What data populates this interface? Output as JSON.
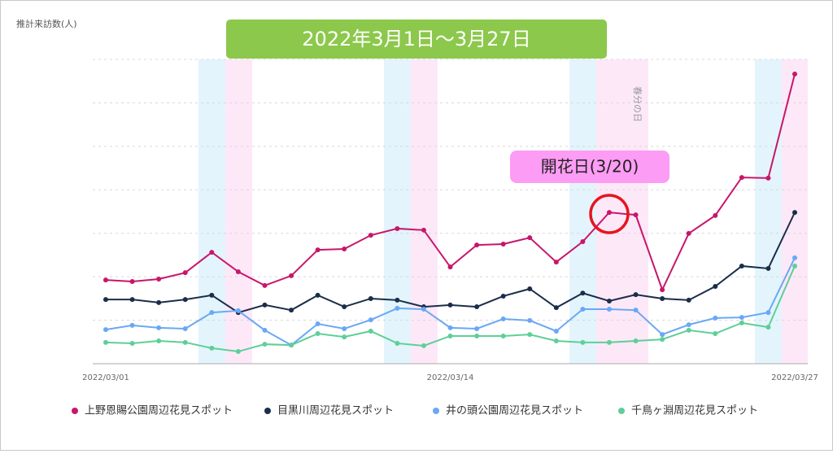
{
  "chart_data": {
    "type": "line",
    "title": "2022年3月1日～3月27日",
    "y_label": "推計来訪数(人)",
    "annotations": [
      "開花日(3/20)",
      "春分の日"
    ],
    "categories": [
      "2022/03/01",
      null,
      null,
      null,
      null,
      null,
      null,
      null,
      null,
      null,
      null,
      null,
      null,
      "2022/03/14",
      null,
      null,
      null,
      null,
      null,
      null,
      null,
      null,
      null,
      null,
      null,
      null,
      "2022/03/27"
    ],
    "ylim": [
      0,
      100
    ],
    "grid": true,
    "legend": "bottom",
    "series": [
      {
        "name": "上野恩賜公園周辺花見スポット",
        "color": "#c8166a",
        "values": [
          27.5,
          27.0,
          27.8,
          29.9,
          36.6,
          30.2,
          25.7,
          28.9,
          37.4,
          37.7,
          42.2,
          44.4,
          43.9,
          31.8,
          39.0,
          39.3,
          41.4,
          33.4,
          40.1,
          49.7,
          48.9,
          24.3,
          42.8,
          48.7,
          61.2,
          61.0,
          95.2
        ]
      },
      {
        "name": "目黒川周辺花見スポット",
        "color": "#1a2e4a",
        "values": [
          21.1,
          21.1,
          20.1,
          21.1,
          22.5,
          16.8,
          19.3,
          17.6,
          22.5,
          18.7,
          21.4,
          20.9,
          18.7,
          19.3,
          18.7,
          22.2,
          24.6,
          18.4,
          23.2,
          20.6,
          22.7,
          21.4,
          20.9,
          25.4,
          32.1,
          31.3,
          49.7
        ]
      },
      {
        "name": "井の頭公園周辺花見スポット",
        "color": "#6aa8f5",
        "values": [
          11.2,
          12.6,
          11.8,
          11.5,
          16.8,
          17.4,
          11.0,
          6.1,
          13.1,
          11.5,
          14.4,
          18.2,
          17.9,
          11.8,
          11.5,
          14.7,
          14.2,
          10.7,
          17.9,
          17.9,
          17.6,
          9.6,
          12.8,
          15.0,
          15.2,
          16.8,
          34.8
        ]
      },
      {
        "name": "千鳥ヶ淵周辺花見スポット",
        "color": "#5ecf98",
        "values": [
          7.0,
          6.7,
          7.5,
          7.0,
          5.1,
          4.0,
          6.4,
          6.1,
          9.9,
          8.8,
          10.7,
          6.7,
          5.9,
          9.1,
          9.1,
          9.1,
          9.6,
          7.5,
          7.0,
          7.0,
          7.5,
          8.0,
          11.0,
          9.9,
          13.4,
          12.0,
          32.1
        ]
      }
    ]
  }
}
